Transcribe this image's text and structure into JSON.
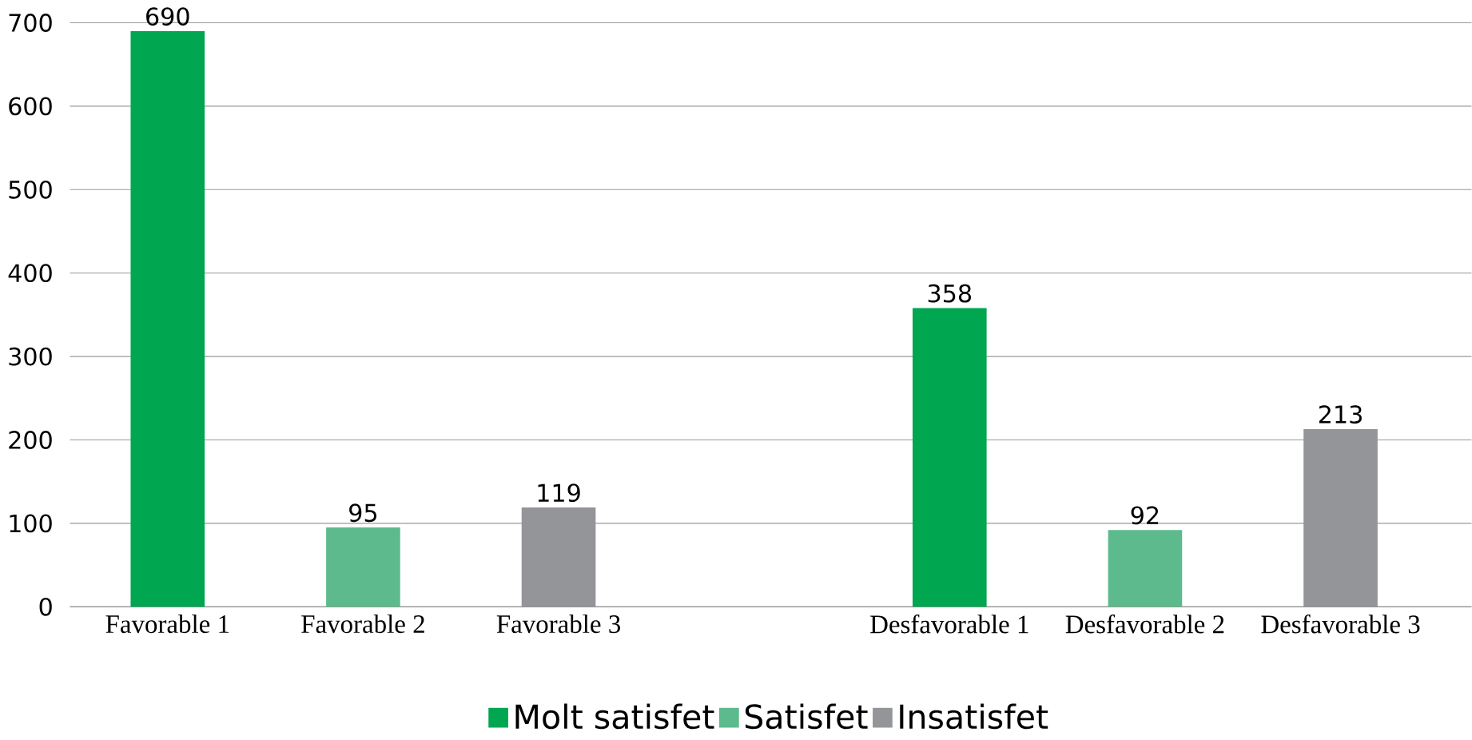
{
  "chart_data": {
    "type": "bar",
    "categories": [
      "Favorable 1",
      "Favorable 2",
      "Favorable 3",
      null,
      "Desfavorable 1",
      "Desfavorable 2",
      "Desfavorable 3"
    ],
    "series": [
      {
        "name": "Molt satisfet",
        "color": "#00a650",
        "values": [
          690,
          null,
          null,
          null,
          358,
          null,
          null
        ]
      },
      {
        "name": "Satisfet",
        "color": "#5dba8c",
        "values": [
          null,
          95,
          null,
          null,
          null,
          92,
          null
        ]
      },
      {
        "name": "Insatisfet",
        "color": "#939598",
        "values": [
          null,
          null,
          119,
          null,
          null,
          null,
          213
        ]
      }
    ],
    "ylim": [
      0,
      700
    ],
    "yticks": [
      0,
      100,
      200,
      300,
      400,
      500,
      600,
      700
    ],
    "grid": "y",
    "legend": "bottom",
    "data_labels": true
  }
}
